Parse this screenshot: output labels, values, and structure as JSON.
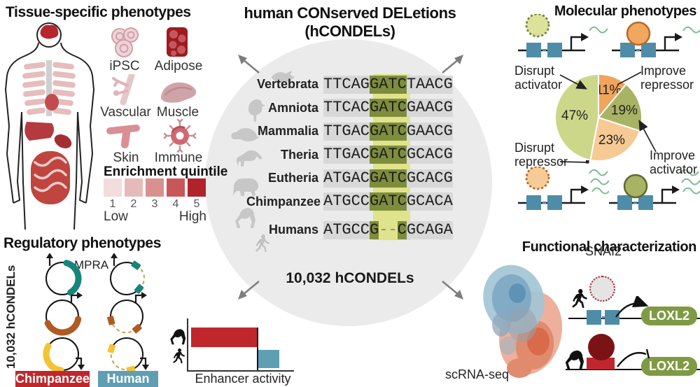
{
  "tissue_section": {
    "title": "Tissue-specific phenotypes",
    "tissues": [
      "iPSC",
      "Adipose",
      "Vascular",
      "Muscle",
      "Skin",
      "Immune"
    ],
    "quintile": {
      "title": "Enrichment quintile",
      "ticks": [
        "1",
        "2",
        "3",
        "4",
        "5"
      ],
      "low": "Low",
      "high": "High",
      "colors": [
        "#f3dcdc",
        "#e7baba",
        "#d89090",
        "#c9575a",
        "#b1222a"
      ]
    }
  },
  "center": {
    "title_line1": "human CONserved DELetions",
    "title_line2": "(hCONDELs)",
    "count_label": "10,032 hCONDELs",
    "species_icons": [
      "fish",
      "chicken",
      "platypus",
      "possum",
      "elephant",
      "chimpanzee",
      "human"
    ],
    "sequence_colors": {
      "row_bg": "#d8d8d8",
      "band": "#dfe38c",
      "core_bg": "#7e8d3c"
    },
    "alignment_rows": [
      {
        "taxon": "Vertebrata",
        "segs": [
          [
            "TTCAG",
            "n"
          ],
          [
            "GATC",
            "h"
          ],
          [
            "TAACG",
            "n"
          ]
        ]
      },
      {
        "taxon": "Amniota",
        "segs": [
          [
            "TTCAC",
            "n"
          ],
          [
            "GATC",
            "h"
          ],
          [
            "GAACG",
            "n"
          ]
        ]
      },
      {
        "taxon": "Mammalia",
        "segs": [
          [
            "TTGAC",
            "n"
          ],
          [
            "GATC",
            "h"
          ],
          [
            "GAACG",
            "n"
          ]
        ]
      },
      {
        "taxon": "Theria",
        "segs": [
          [
            "TTGAC",
            "n"
          ],
          [
            "GATC",
            "h"
          ],
          [
            "GCACG",
            "n"
          ]
        ]
      },
      {
        "taxon": "Eutheria",
        "segs": [
          [
            "ATGAC",
            "n"
          ],
          [
            "GATC",
            "h"
          ],
          [
            "GCACG",
            "n"
          ]
        ]
      },
      {
        "taxon": "Chimpanzee",
        "segs": [
          [
            "ATGCC",
            "n"
          ],
          [
            "GATC",
            "h"
          ],
          [
            "GCACA",
            "n"
          ]
        ]
      },
      {
        "taxon": "Humans",
        "gap": true,
        "segs": [
          [
            "ATGCC",
            "n"
          ],
          [
            "G",
            "h"
          ],
          [
            "--",
            "g"
          ],
          [
            "C",
            "h"
          ],
          [
            "GCAGA",
            "n"
          ]
        ]
      }
    ]
  },
  "molecular": {
    "title": "Molecular phenotypes",
    "labels": {
      "disrupt_activator": "Disrupt activator",
      "improve_repressor": "Improve repressor",
      "disrupt_repressor": "Disrupt repressor",
      "improve_activator": "Improve activator"
    },
    "icon_colors": {
      "squares": "#4e8ca7",
      "wave": "#7cbd92",
      "activator_fill": "#dde29b",
      "activator_stroke": "#76843a",
      "repressor_fill": "#f0a860",
      "repressor_stroke": "#b96a28",
      "repressor_light_fill": "#f7cb96",
      "improve_activator_fill": "#a9b364",
      "improve_activator_stroke": "#5c6a2e"
    }
  },
  "chart_data": [
    {
      "type": "pie",
      "title": "Molecular phenotypes",
      "labels_unit": "%",
      "start_angle_deg": 0,
      "direction": "clockwise",
      "slices": [
        {
          "label": "Improve repressor",
          "value": 11,
          "color": "#f0a45c"
        },
        {
          "label": "Improve activator",
          "value": 19,
          "color": "#a9b364"
        },
        {
          "label": "Disrupt repressor",
          "value": 23,
          "color": "#f6c995"
        },
        {
          "label": "Disrupt activator",
          "value": 47,
          "color": "#cdd78a"
        }
      ]
    },
    {
      "type": "bar",
      "orientation": "horizontal",
      "categories": [
        "Chimpanzee",
        "Human"
      ],
      "values": [
        1.0,
        0.32
      ],
      "value_scale": "relative (no numeric axis shown)",
      "colors": [
        "#c0272d",
        "#5f9eb3"
      ],
      "xlabel": "Enhancer activity",
      "category_icons": [
        "chimpanzee-silhouette",
        "human-silhouette"
      ]
    }
  ],
  "regulatory": {
    "title": "Regulatory phenotypes",
    "side_label": "10,032 hCONDELs",
    "mpra_label": "MPRA",
    "plasmid_colors": [
      "#17857a",
      "#b05a24",
      "#f2c335"
    ],
    "banners": [
      {
        "label": "Chimpanzee",
        "color": "#c0272d"
      },
      {
        "label": "Human",
        "color": "#5f9eb3"
      }
    ]
  },
  "functional": {
    "title": "Functional characterization",
    "snai2_label": "SNAI2",
    "gene_label": "LOXL2",
    "scrna_label": "scRNA-seq",
    "capsule_color": "#7f9a44",
    "repressor_dark": "#7a1216",
    "repressor_red": "#c0272d",
    "snai2_dot_color": "#a51f2a"
  }
}
